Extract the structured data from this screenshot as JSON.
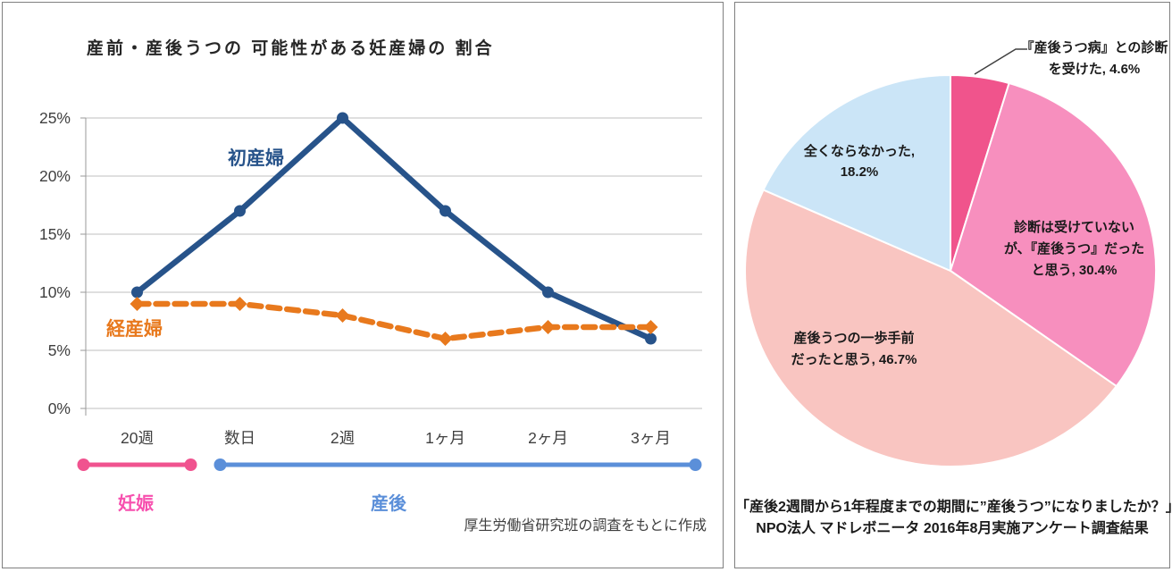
{
  "chart_data": [
    {
      "type": "line",
      "title": "産前・産後うつの 可能性がある妊産婦の 割合",
      "categories": [
        "20週",
        "数日",
        "2週",
        "1ヶ月",
        "2ヶ月",
        "3ヶ月"
      ],
      "series": [
        {
          "name": "初産婦",
          "values": [
            10,
            17,
            25,
            17,
            10,
            6
          ],
          "color": "#27538A",
          "style": "solid",
          "marker": "circle"
        },
        {
          "name": "経産婦",
          "values": [
            9,
            9,
            8,
            6,
            7,
            7
          ],
          "color": "#E8791D",
          "style": "dashed",
          "marker": "diamond"
        }
      ],
      "ylim": [
        0,
        25
      ],
      "ytick_step": 5,
      "ytick_labels": [
        "0%",
        "5%",
        "10%",
        "15%",
        "20%",
        "25%"
      ],
      "grid": true,
      "gridline_color": "#BFBFBF",
      "period_axis": [
        {
          "label": "妊娠",
          "span_categories": [
            "20週"
          ],
          "color": "#F0538F",
          "text_color": "#F74FAE"
        },
        {
          "label": "産後",
          "span_categories": [
            "数日",
            "3ヶ月"
          ],
          "color": "#5B8FD9",
          "text_color": "#5B8FD9"
        }
      ],
      "source": "厚生労働省研究班の調査をもとに作成"
    },
    {
      "type": "pie",
      "start_angle_deg": 0,
      "direction": "clockwise",
      "slices": [
        {
          "label": "『産後うつ病』との診断を受けた",
          "value": 4.6,
          "color": "#F0548C",
          "label_lines": [
            "『産後うつ病』との診断",
            "を受けた, 4.6%"
          ]
        },
        {
          "label": "診断は受けていないが、『産後うつ』だったと思う",
          "value": 30.4,
          "color": "#F78FBE",
          "label_lines": [
            "診断は受けていない",
            "が、『産後うつ』だった",
            "と思う, 30.4%"
          ]
        },
        {
          "label": "産後うつの一歩手前だったと思う",
          "value": 46.7,
          "color": "#F9C5C1",
          "label_lines": [
            "産後うつの一歩手前",
            "だったと思う, 46.7%"
          ]
        },
        {
          "label": "全くならなかった",
          "value": 18.2,
          "color": "#CBE5F7",
          "label_lines": [
            "全くならなかった,",
            "18.2%"
          ]
        }
      ],
      "caption_lines": [
        "「産後2週間から1年程度までの期間に”産後うつ”になりましたか？」",
        "NPO法人 マドレボニータ 2016年8月実施アンケート調査結果"
      ]
    }
  ]
}
